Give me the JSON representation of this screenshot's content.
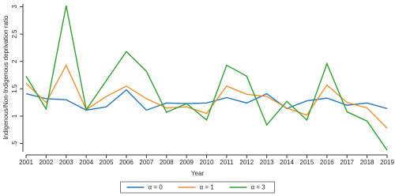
{
  "chart_data": {
    "type": "line",
    "x_label": "Year",
    "y_label": "Indigenous/Non-Indigenous deprivation ratio",
    "x": [
      2001,
      2002,
      2003,
      2004,
      2005,
      2006,
      2007,
      2008,
      2009,
      2010,
      2011,
      2012,
      2013,
      2014,
      2015,
      2016,
      2017,
      2018,
      2019
    ],
    "series": [
      {
        "name": "α = 0",
        "color": "#1f77c4",
        "values": [
          1.41,
          1.32,
          1.3,
          1.11,
          1.17,
          1.48,
          1.11,
          1.24,
          1.23,
          1.24,
          1.34,
          1.24,
          1.41,
          1.14,
          1.28,
          1.33,
          1.2,
          1.24,
          1.14
        ]
      },
      {
        "name": "α = 1",
        "color": "#f28e2b",
        "values": [
          1.6,
          1.25,
          1.93,
          1.12,
          1.36,
          1.55,
          1.32,
          1.15,
          1.17,
          1.05,
          1.55,
          1.4,
          1.36,
          1.15,
          1.02,
          1.57,
          1.25,
          1.15,
          0.78
        ]
      },
      {
        "name": "α = 3",
        "color": "#2ca02c",
        "values": [
          1.73,
          1.13,
          3.02,
          1.12,
          1.65,
          2.18,
          1.82,
          1.07,
          1.23,
          0.93,
          1.93,
          1.73,
          0.84,
          1.27,
          0.93,
          1.96,
          1.08,
          0.91,
          0.38
        ]
      }
    ],
    "xlim": [
      2001,
      2019
    ],
    "xticks": [
      2001,
      2002,
      2003,
      2004,
      2005,
      2006,
      2007,
      2008,
      2009,
      2010,
      2011,
      2012,
      2013,
      2014,
      2015,
      2016,
      2017,
      2018,
      2019
    ],
    "ylim": [
      0.35,
      3.05
    ],
    "yticks": [
      {
        "value": 0.5,
        "label": ".5"
      },
      1,
      1.5,
      2,
      2.5,
      3
    ],
    "grid": false,
    "legend": "bottom"
  }
}
